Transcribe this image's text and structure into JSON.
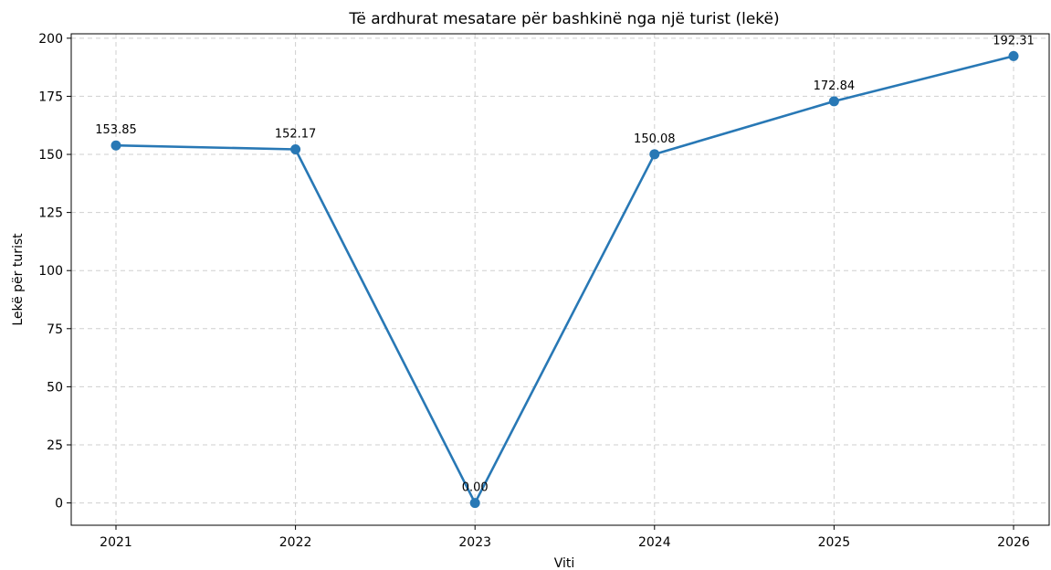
{
  "chart_data": {
    "type": "line",
    "title": "Të ardhurat mesatare për bashkinë nga një turist (lekë)",
    "xlabel": "Viti",
    "ylabel": "Lekë për turist",
    "categories": [
      "2021",
      "2022",
      "2023",
      "2024",
      "2025",
      "2026"
    ],
    "series": [
      {
        "values": [
          153.85,
          152.17,
          0.0,
          150.08,
          172.84,
          192.31
        ],
        "labels": [
          "153.85",
          "152.17",
          "0.00",
          "150.08",
          "172.84",
          "192.31"
        ],
        "color": "#2878b5"
      }
    ],
    "ylim": [
      -9.6,
      201.9
    ],
    "yticks": [
      0,
      25,
      50,
      75,
      100,
      125,
      150,
      175,
      200
    ],
    "ytick_labels": [
      "0",
      "25",
      "50",
      "75",
      "100",
      "125",
      "150",
      "175",
      "200"
    ],
    "grid": true,
    "spines": [
      "left",
      "bottom"
    ]
  }
}
